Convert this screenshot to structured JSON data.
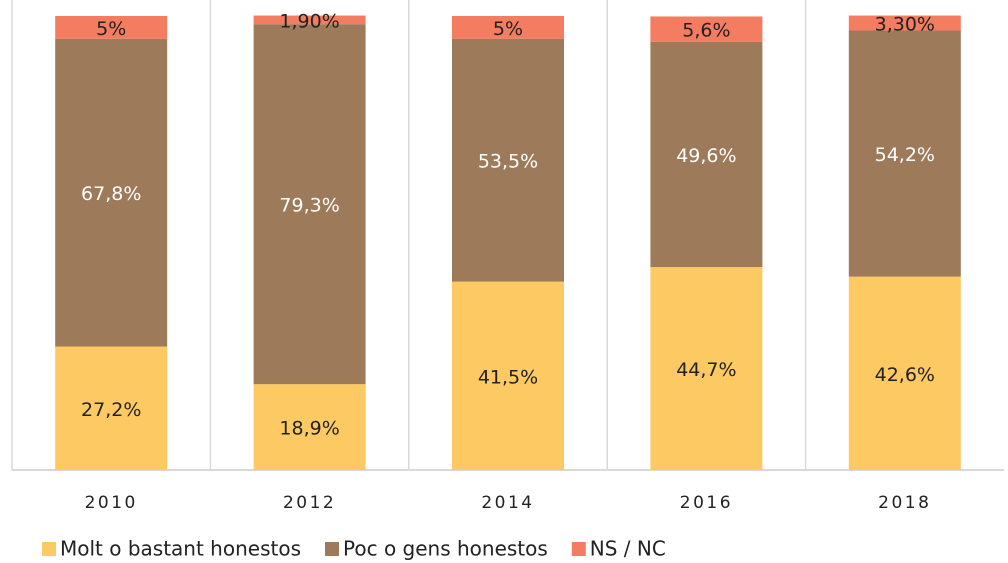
{
  "chart_data": {
    "type": "stacked_bar",
    "categories": [
      "2010",
      "2012",
      "2014",
      "2016",
      "2018"
    ],
    "series": [
      {
        "name": "Molt o bastant honestos",
        "color": "#fdc962",
        "values": [
          27.2,
          18.9,
          41.5,
          44.7,
          42.6
        ],
        "value_labels": [
          "27,2%",
          "18,9%",
          "41,5%",
          "44,7%",
          "42,6%"
        ]
      },
      {
        "name": "Poc o gens honestos",
        "color": "#9c7a5a",
        "values": [
          67.8,
          79.3,
          53.5,
          49.6,
          54.2
        ],
        "value_labels": [
          "67,8%",
          "79,3%",
          "53,5%",
          "49,6%",
          "54,2%"
        ]
      },
      {
        "name": "NS / NC",
        "color": "#f47c60",
        "values": [
          5,
          1.9,
          5,
          5.6,
          3.3
        ],
        "value_labels": [
          "5%",
          "1,90%",
          "5%",
          "5,6%",
          "3,30%"
        ]
      }
    ],
    "ylim": [
      0,
      100
    ]
  }
}
